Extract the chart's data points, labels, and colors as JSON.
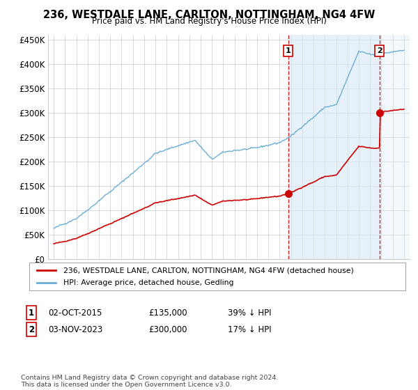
{
  "title": "236, WESTDALE LANE, CARLTON, NOTTINGHAM, NG4 4FW",
  "subtitle": "Price paid vs. HM Land Registry's House Price Index (HPI)",
  "ylim": [
    0,
    460000
  ],
  "yticks": [
    0,
    50000,
    100000,
    150000,
    200000,
    250000,
    300000,
    350000,
    400000,
    450000
  ],
  "ytick_labels": [
    "£0",
    "£50K",
    "£100K",
    "£150K",
    "£200K",
    "£250K",
    "£300K",
    "£350K",
    "£400K",
    "£450K"
  ],
  "hpi_color": "#6baed6",
  "hpi_fill_color": "#d6e8f5",
  "price_color": "#cc0000",
  "dashed_line_color": "#cc0000",
  "background_color": "#ffffff",
  "grid_color": "#cccccc",
  "legend_label_property": "236, WESTDALE LANE, CARLTON, NOTTINGHAM, NG4 4FW (detached house)",
  "legend_label_hpi": "HPI: Average price, detached house, Gedling",
  "sale1_date": "02-OCT-2015",
  "sale1_price": 135000,
  "sale1_pct": "39%",
  "sale2_date": "03-NOV-2023",
  "sale2_price": 300000,
  "sale2_pct": "17%",
  "footnote": "Contains HM Land Registry data © Crown copyright and database right 2024.\nThis data is licensed under the Open Government Licence v3.0.",
  "sale1_x": 2015.75,
  "sale2_x": 2023.83
}
